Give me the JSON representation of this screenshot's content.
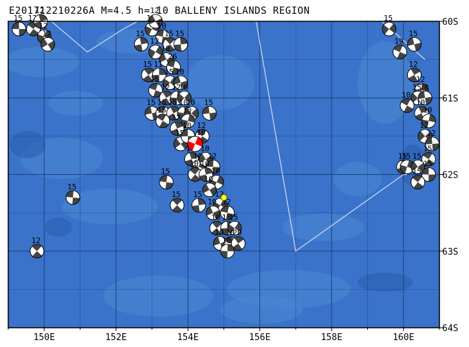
{
  "header": {
    "title": "E201712210226A M=4.5 h= 10 BALLENY ISLANDS REGION"
  },
  "map": {
    "projection": "mercator",
    "lon_range": [
      149,
      161
    ],
    "lat_range": [
      -60,
      -64
    ],
    "lon_ticks": [
      150,
      152,
      154,
      156,
      158,
      160
    ],
    "lon_tick_labels": [
      "150E",
      "152E",
      "154E",
      "156E",
      "158E",
      "160E"
    ],
    "lat_ticks": [
      -60,
      -61,
      -62,
      -63,
      -64
    ],
    "lat_tick_labels": [
      "60S",
      "61S",
      "62S",
      "63S",
      "64S"
    ],
    "colors": {
      "ocean": "#3a73c9",
      "shallow": "#4d87d4",
      "deep_patch": "#2a5fb0",
      "grid": "#1f3f7a",
      "plate_boundary": "#c8d8f0",
      "beachball_dark": "#444444",
      "beachball_light": "#ffffff",
      "target_event": "#ff0000",
      "epicenter_marker": "#ffff00"
    },
    "target_event": {
      "lon": 154.2,
      "lat": -61.6,
      "depth_label": "10"
    },
    "epicenter_marker": {
      "lon": 155.0,
      "lat": -62.3
    },
    "plate_boundary_lonlat": [
      [
        150.2,
        -60.0
      ],
      [
        151.2,
        -60.4
      ],
      [
        152.2,
        -60.1
      ],
      [
        152.6,
        -60.0
      ],
      null,
      [
        155.9,
        -60.0
      ],
      [
        157.0,
        -63.0
      ],
      [
        160.0,
        -62.0
      ],
      [
        160.1,
        -62.0
      ],
      null,
      [
        159.4,
        -60.0
      ],
      [
        160.6,
        -60.5
      ]
    ],
    "mechanisms": [
      {
        "lon": 149.3,
        "lat": -60.1,
        "depth": "15"
      },
      {
        "lon": 149.7,
        "lat": -60.1,
        "depth": "12"
      },
      {
        "lon": 149.9,
        "lat": -60.0,
        "depth": "12"
      },
      {
        "lon": 150.0,
        "lat": -60.2,
        "depth": "12"
      },
      {
        "lon": 150.1,
        "lat": -60.3,
        "depth": "12"
      },
      {
        "lon": 150.8,
        "lat": -62.3,
        "depth": "15"
      },
      {
        "lon": 149.8,
        "lat": -63.0,
        "depth": "12"
      },
      {
        "lon": 152.7,
        "lat": -60.3,
        "depth": "15"
      },
      {
        "lon": 153.0,
        "lat": -60.1,
        "depth": "15"
      },
      {
        "lon": 153.1,
        "lat": -60.0,
        "depth": "12"
      },
      {
        "lon": 153.3,
        "lat": -60.2,
        "depth": "10"
      },
      {
        "lon": 153.5,
        "lat": -60.3,
        "depth": "15"
      },
      {
        "lon": 153.8,
        "lat": -60.3,
        "depth": "15"
      },
      {
        "lon": 153.1,
        "lat": -60.4,
        "depth": "12"
      },
      {
        "lon": 153.4,
        "lat": -60.5,
        "depth": "10"
      },
      {
        "lon": 153.6,
        "lat": -60.6,
        "depth": "26"
      },
      {
        "lon": 152.9,
        "lat": -60.7,
        "depth": "15"
      },
      {
        "lon": 153.2,
        "lat": -60.7,
        "depth": "11"
      },
      {
        "lon": 153.5,
        "lat": -60.8,
        "depth": "15"
      },
      {
        "lon": 153.8,
        "lat": -60.8,
        "depth": "10"
      },
      {
        "lon": 153.1,
        "lat": -60.9,
        "depth": "15"
      },
      {
        "lon": 153.4,
        "lat": -61.0,
        "depth": "12"
      },
      {
        "lon": 153.7,
        "lat": -61.0,
        "depth": "12"
      },
      {
        "lon": 153.9,
        "lat": -61.0,
        "depth": "10"
      },
      {
        "lon": 153.0,
        "lat": -61.2,
        "depth": "15"
      },
      {
        "lon": 153.3,
        "lat": -61.2,
        "depth": "15"
      },
      {
        "lon": 153.6,
        "lat": -61.2,
        "depth": "15"
      },
      {
        "lon": 153.9,
        "lat": -61.2,
        "depth": "10"
      },
      {
        "lon": 154.1,
        "lat": -61.2,
        "depth": "10"
      },
      {
        "lon": 154.6,
        "lat": -61.2,
        "depth": "15"
      },
      {
        "lon": 153.3,
        "lat": -61.3,
        "depth": "15"
      },
      {
        "lon": 153.7,
        "lat": -61.4,
        "depth": "12"
      },
      {
        "lon": 154.0,
        "lat": -61.3,
        "depth": "10"
      },
      {
        "lon": 153.8,
        "lat": -61.6,
        "depth": "15"
      },
      {
        "lon": 154.0,
        "lat": -61.5,
        "depth": "10"
      },
      {
        "lon": 154.4,
        "lat": -61.5,
        "depth": "12"
      },
      {
        "lon": 154.1,
        "lat": -61.8,
        "depth": "10"
      },
      {
        "lon": 154.3,
        "lat": -61.9,
        "depth": "10"
      },
      {
        "lon": 154.5,
        "lat": -61.8,
        "depth": "10"
      },
      {
        "lon": 154.7,
        "lat": -61.9,
        "depth": "12"
      },
      {
        "lon": 154.2,
        "lat": -62.0,
        "depth": "10"
      },
      {
        "lon": 154.5,
        "lat": -62.0,
        "depth": "10"
      },
      {
        "lon": 154.8,
        "lat": -62.1,
        "depth": "10"
      },
      {
        "lon": 154.6,
        "lat": -62.2,
        "depth": "10"
      },
      {
        "lon": 153.4,
        "lat": -62.1,
        "depth": "15"
      },
      {
        "lon": 153.7,
        "lat": -62.4,
        "depth": "15"
      },
      {
        "lon": 154.3,
        "lat": -62.4,
        "depth": "15"
      },
      {
        "lon": 154.9,
        "lat": -62.4,
        "depth": "12"
      },
      {
        "lon": 154.7,
        "lat": -62.5,
        "depth": "10"
      },
      {
        "lon": 155.1,
        "lat": -62.5,
        "depth": "12"
      },
      {
        "lon": 154.8,
        "lat": -62.7,
        "depth": "10"
      },
      {
        "lon": 155.1,
        "lat": -62.7,
        "depth": "15"
      },
      {
        "lon": 155.3,
        "lat": -62.7,
        "depth": "15"
      },
      {
        "lon": 154.9,
        "lat": -62.9,
        "depth": "10"
      },
      {
        "lon": 155.2,
        "lat": -62.9,
        "depth": "10"
      },
      {
        "lon": 155.4,
        "lat": -62.9,
        "depth": "20"
      },
      {
        "lon": 155.1,
        "lat": -63.0,
        "depth": "10"
      },
      {
        "lon": 159.6,
        "lat": -60.1,
        "depth": "15"
      },
      {
        "lon": 160.3,
        "lat": -60.3,
        "depth": "15"
      },
      {
        "lon": 159.9,
        "lat": -60.4,
        "depth": "19"
      },
      {
        "lon": 160.3,
        "lat": -60.7,
        "depth": "12"
      },
      {
        "lon": 160.5,
        "lat": -60.9,
        "depth": "12"
      },
      {
        "lon": 160.4,
        "lat": -61.0,
        "depth": "15"
      },
      {
        "lon": 160.6,
        "lat": -61.0,
        "depth": "20"
      },
      {
        "lon": 160.1,
        "lat": -61.1,
        "depth": "10"
      },
      {
        "lon": 160.5,
        "lat": -61.2,
        "depth": "10"
      },
      {
        "lon": 160.7,
        "lat": -61.3,
        "depth": "10"
      },
      {
        "lon": 160.6,
        "lat": -61.5,
        "depth": "12"
      },
      {
        "lon": 160.8,
        "lat": -61.6,
        "depth": "12"
      },
      {
        "lon": 160.7,
        "lat": -61.8,
        "depth": "15"
      },
      {
        "lon": 160.0,
        "lat": -61.9,
        "depth": "15"
      },
      {
        "lon": 160.1,
        "lat": -61.9,
        "depth": "15"
      },
      {
        "lon": 160.4,
        "lat": -61.9,
        "depth": "15"
      },
      {
        "lon": 160.7,
        "lat": -62.0,
        "depth": "15"
      },
      {
        "lon": 160.4,
        "lat": -62.1,
        "depth": "15"
      }
    ]
  }
}
